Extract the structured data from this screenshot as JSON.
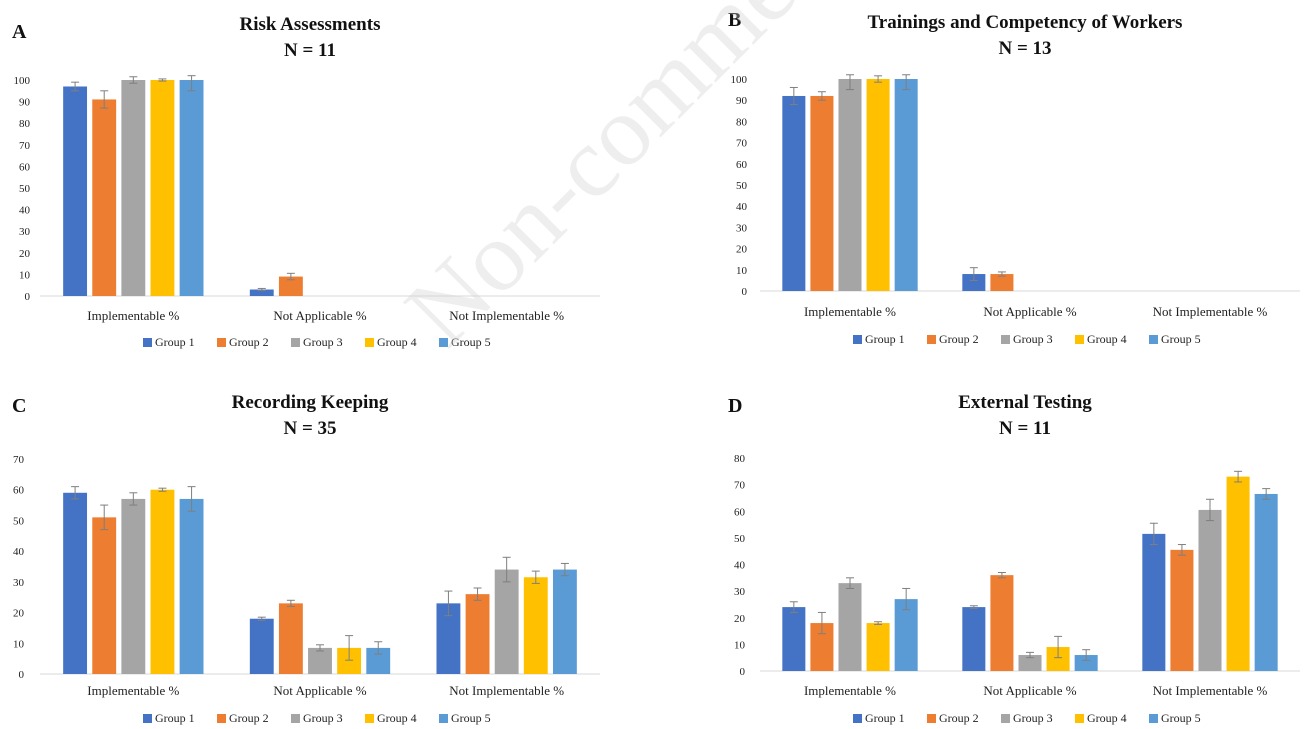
{
  "watermark": "Non-comme",
  "chart_data": [
    {
      "panel": "A",
      "type": "bar",
      "title": "Risk Assessments",
      "subtitle": "N = 11",
      "categories": [
        "Implementable %",
        "Not Applicable %",
        "Not Implementable %"
      ],
      "ylim": [
        0,
        100
      ],
      "yticks": [
        0,
        10,
        20,
        30,
        40,
        50,
        60,
        70,
        80,
        90,
        100
      ],
      "series": [
        {
          "name": "Group 1",
          "color": "#4472C4",
          "values": [
            97,
            3,
            0
          ],
          "errors": [
            2,
            0.5,
            0
          ]
        },
        {
          "name": "Group 2",
          "color": "#ED7D31",
          "values": [
            91,
            9,
            0
          ],
          "errors": [
            4,
            1.5,
            0
          ]
        },
        {
          "name": "Group 3",
          "color": "#A5A5A5",
          "values": [
            100,
            0,
            0
          ],
          "errors": [
            1.5,
            0,
            0
          ]
        },
        {
          "name": "Group 4",
          "color": "#FFC000",
          "values": [
            100,
            0,
            0
          ],
          "errors": [
            0.5,
            0,
            0
          ]
        },
        {
          "name": "Group 5",
          "color": "#5B9BD5",
          "values": [
            100,
            0,
            0
          ],
          "errors": [
            5,
            0,
            0
          ]
        }
      ]
    },
    {
      "panel": "B",
      "type": "bar",
      "title": "Trainings and Competency of Workers",
      "subtitle": "N = 13",
      "categories": [
        "Implementable %",
        "Not Applicable %",
        "Not Implementable %"
      ],
      "ylim": [
        0,
        100
      ],
      "yticks": [
        0,
        10,
        20,
        30,
        40,
        50,
        60,
        70,
        80,
        90,
        100
      ],
      "series": [
        {
          "name": "Group 1",
          "color": "#4472C4",
          "values": [
            92,
            8,
            0
          ],
          "errors": [
            4,
            3,
            0
          ]
        },
        {
          "name": "Group 2",
          "color": "#ED7D31",
          "values": [
            92,
            8,
            0
          ],
          "errors": [
            2,
            1,
            0
          ]
        },
        {
          "name": "Group 3",
          "color": "#A5A5A5",
          "values": [
            100,
            0,
            0
          ],
          "errors": [
            5,
            0,
            0
          ]
        },
        {
          "name": "Group 4",
          "color": "#FFC000",
          "values": [
            100,
            0,
            0
          ],
          "errors": [
            1.5,
            0,
            0
          ]
        },
        {
          "name": "Group 5",
          "color": "#5B9BD5",
          "values": [
            100,
            0,
            0
          ],
          "errors": [
            5,
            0,
            0
          ]
        }
      ]
    },
    {
      "panel": "C",
      "type": "bar",
      "title": "Recording Keeping",
      "subtitle": "N = 35",
      "categories": [
        "Implementable %",
        "Not Applicable %",
        "Not Implementable %"
      ],
      "ylim": [
        0,
        70
      ],
      "yticks": [
        0,
        10,
        20,
        30,
        40,
        50,
        60,
        70
      ],
      "series": [
        {
          "name": "Group 1",
          "color": "#4472C4",
          "values": [
            59,
            18,
            23
          ],
          "errors": [
            2,
            0.5,
            4
          ]
        },
        {
          "name": "Group 2",
          "color": "#ED7D31",
          "values": [
            51,
            23,
            26
          ],
          "errors": [
            4,
            1,
            2
          ]
        },
        {
          "name": "Group 3",
          "color": "#A5A5A5",
          "values": [
            57,
            8.5,
            34
          ],
          "errors": [
            2,
            1,
            4
          ]
        },
        {
          "name": "Group 4",
          "color": "#FFC000",
          "values": [
            60,
            8.5,
            31.5
          ],
          "errors": [
            0.5,
            4,
            2
          ]
        },
        {
          "name": "Group 5",
          "color": "#5B9BD5",
          "values": [
            57,
            8.5,
            34
          ],
          "errors": [
            4,
            2,
            2
          ]
        }
      ]
    },
    {
      "panel": "D",
      "type": "bar",
      "title": "External Testing",
      "subtitle": "N = 11",
      "categories": [
        "Implementable %",
        "Not Applicable %",
        "Not Implementable %"
      ],
      "ylim": [
        0,
        80
      ],
      "yticks": [
        0,
        10,
        20,
        30,
        40,
        50,
        60,
        70,
        80
      ],
      "series": [
        {
          "name": "Group 1",
          "color": "#4472C4",
          "values": [
            24,
            24,
            51.5
          ],
          "errors": [
            2,
            0.5,
            4
          ]
        },
        {
          "name": "Group 2",
          "color": "#ED7D31",
          "values": [
            18,
            36,
            45.5
          ],
          "errors": [
            4,
            1,
            2
          ]
        },
        {
          "name": "Group 3",
          "color": "#A5A5A5",
          "values": [
            33,
            6,
            60.5
          ],
          "errors": [
            2,
            1,
            4
          ]
        },
        {
          "name": "Group 4",
          "color": "#FFC000",
          "values": [
            18,
            9,
            73
          ],
          "errors": [
            0.5,
            4,
            2
          ]
        },
        {
          "name": "Group 5",
          "color": "#5B9BD5",
          "values": [
            27,
            6,
            66.5
          ],
          "errors": [
            4,
            2,
            2
          ]
        }
      ]
    }
  ]
}
